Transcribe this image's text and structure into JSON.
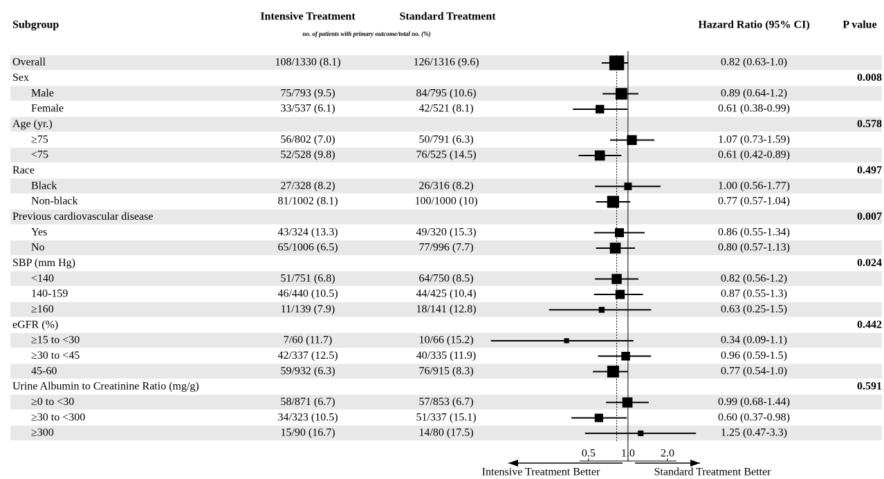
{
  "chart_data": {
    "type": "forest",
    "columns": {
      "subgroup": "Subgroup",
      "intensive": "Intensive Treatment",
      "standard": "Standard Treatment",
      "note": "no. of patients with primary outcome/total no. (%)",
      "hr": "Hazard Ratio (95% CI)",
      "p": "P value"
    },
    "overall": {
      "label": "Overall",
      "intensive": "108/1330 (8.1)",
      "standard": "126/1316 (9.6)",
      "hr": 0.82,
      "ci": [
        0.63,
        1.0
      ],
      "hr_label": "0.82 (0.63-1.0)"
    },
    "groups": [
      {
        "label": "Sex",
        "p": 0.008,
        "rows": [
          {
            "label": "Male",
            "intensive": "75/793 (9.5)",
            "standard": "84/795 (10.6)",
            "hr": 0.89,
            "ci": [
              0.64,
              1.2
            ],
            "hr_label": "0.89 (0.64-1.2)"
          },
          {
            "label": "Female",
            "intensive": "33/537 (6.1)",
            "standard": "42/521 (8.1)",
            "hr": 0.61,
            "ci": [
              0.38,
              0.99
            ],
            "hr_label": "0.61 (0.38-0.99)"
          }
        ]
      },
      {
        "label": "Age (yr.)",
        "p": 0.578,
        "rows": [
          {
            "label": "≥75",
            "intensive": "56/802 (7.0)",
            "standard": "50/791 (6.3)",
            "hr": 1.07,
            "ci": [
              0.73,
              1.59
            ],
            "hr_label": "1.07 (0.73-1.59)"
          },
          {
            "label": "<75",
            "intensive": "52/528 (9.8)",
            "standard": "76/525 (14.5)",
            "hr": 0.61,
            "ci": [
              0.42,
              0.89
            ],
            "hr_label": "0.61 (0.42-0.89)"
          }
        ]
      },
      {
        "label": "Race",
        "p": 0.497,
        "rows": [
          {
            "label": "Black",
            "intensive": "27/328 (8.2)",
            "standard": "26/316 (8.2)",
            "hr": 1.0,
            "ci": [
              0.56,
              1.77
            ],
            "hr_label": "1.00 (0.56-1.77)"
          },
          {
            "label": "Non-black",
            "intensive": "81/1002 (8.1)",
            "standard": "100/1000 (10)",
            "hr": 0.77,
            "ci": [
              0.57,
              1.04
            ],
            "hr_label": "0.77 (0.57-1.04)"
          }
        ]
      },
      {
        "label": "Previous cardiovascular disease",
        "p": 0.007,
        "rows": [
          {
            "label": "Yes",
            "intensive": "43/324 (13.3)",
            "standard": "49/320 (15.3)",
            "hr": 0.86,
            "ci": [
              0.55,
              1.34
            ],
            "hr_label": "0.86 (0.55-1.34)"
          },
          {
            "label": "No",
            "intensive": "65/1006 (6.5)",
            "standard": "77/996 (7.7)",
            "hr": 0.8,
            "ci": [
              0.57,
              1.13
            ],
            "hr_label": "0.80 (0.57-1.13)"
          }
        ]
      },
      {
        "label": "SBP (mm Hg)",
        "p": 0.024,
        "rows": [
          {
            "label": "<140",
            "intensive": "51/751 (6.8)",
            "standard": "64/750 (8.5)",
            "hr": 0.82,
            "ci": [
              0.56,
              1.2
            ],
            "hr_label": "0.82 (0.56-1.2)"
          },
          {
            "label": "140-159",
            "intensive": "46/440 (10.5)",
            "standard": "44/425 (10.4)",
            "hr": 0.87,
            "ci": [
              0.55,
              1.3
            ],
            "hr_label": "0.87 (0.55-1.3)"
          },
          {
            "label": "≥160",
            "intensive": "11/139 (7.9)",
            "standard": "18/141 (12.8)",
            "hr": 0.63,
            "ci": [
              0.25,
              1.5
            ],
            "hr_label": "0.63 (0.25-1.5)"
          }
        ]
      },
      {
        "label": "eGFR (%)",
        "p": 0.442,
        "rows": [
          {
            "label": "≥15 to <30",
            "intensive": "7/60 (11.7)",
            "standard": "10/66 (15.2)",
            "hr": 0.34,
            "ci": [
              0.09,
              1.1
            ],
            "hr_label": "0.34 (0.09-1.1)"
          },
          {
            "label": "≥30 to <45",
            "intensive": "42/337 (12.5)",
            "standard": "40/335 (11.9)",
            "hr": 0.96,
            "ci": [
              0.59,
              1.5
            ],
            "hr_label": "0.96 (0.59-1.5)"
          },
          {
            "label": "45-60",
            "intensive": "59/932 (6.3)",
            "standard": "76/915 (8.3)",
            "hr": 0.77,
            "ci": [
              0.54,
              1.0
            ],
            "hr_label": "0.77 (0.54-1.0)"
          }
        ]
      },
      {
        "label": "Urine Albumin to Creatinine Ratio (mg/g)",
        "p": 0.591,
        "rows": [
          {
            "label": "≥0 to <30",
            "intensive": "58/871 (6.7)",
            "standard": "57/853 (6.7)",
            "hr": 0.99,
            "ci": [
              0.68,
              1.44
            ],
            "hr_label": "0.99 (0.68-1.44)"
          },
          {
            "label": "≥30 to <300",
            "intensive": "34/323 (10.5)",
            "standard": "51/337 (15.1)",
            "hr": 0.6,
            "ci": [
              0.37,
              0.98
            ],
            "hr_label": "0.60 (0.37-0.98)"
          },
          {
            "label": "≥300",
            "intensive": "15/90 (16.7)",
            "standard": "14/80 (17.5)",
            "hr": 1.25,
            "ci": [
              0.47,
              3.3
            ],
            "hr_label": "1.25 (0.47-3.3)"
          }
        ]
      }
    ],
    "xlim": [
      0.08,
      4
    ],
    "xticks": [
      0.5,
      {
        "value": 1,
        "label": "1.0"
      },
      {
        "value": 2,
        "label": "2.0"
      }
    ],
    "log_x": true,
    "left_label": "Intensive Treatment Better",
    "right_label": "Standard Treatment Better"
  }
}
